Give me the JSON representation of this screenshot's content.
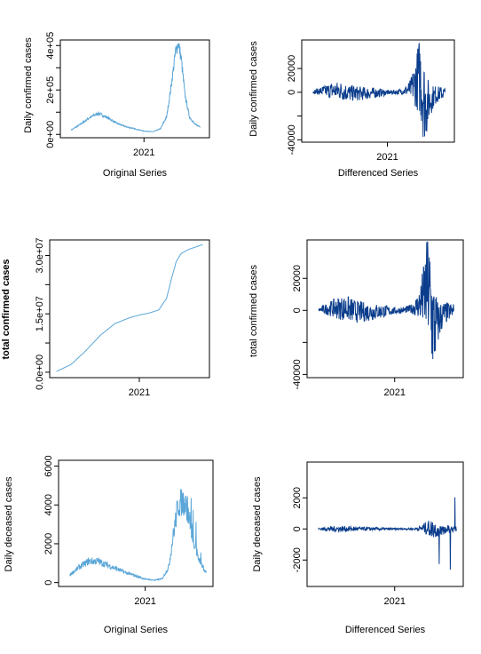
{
  "chart_data": [
    {
      "id": "p1",
      "type": "line",
      "color": "#5aa6d8",
      "ylabel": "Daily confirmed cases",
      "xlabel": "Original Series",
      "xticks": [
        {
          "x": 2021,
          "label": "2021"
        }
      ],
      "yticks": [
        {
          "v": 0,
          "label": "0e+00"
        },
        {
          "v": 200000,
          "label": "2e+05"
        },
        {
          "v": 400000,
          "label": "4e+05"
        }
      ],
      "minor_yticks": [
        100000,
        300000
      ],
      "xlim": [
        2020.08,
        2021.72
      ],
      "ylim": [
        -15000,
        425000
      ],
      "series": [
        {
          "x": [
            2020.2,
            2020.3,
            2020.4,
            2020.5,
            2020.6,
            2020.7,
            2020.8,
            2020.9,
            2021.0,
            2021.1,
            2021.18,
            2021.25,
            2021.3,
            2021.35,
            2021.38,
            2021.41,
            2021.45,
            2021.5,
            2021.56,
            2021.62
          ],
          "values": [
            20000,
            45000,
            75000,
            95000,
            75000,
            50000,
            35000,
            25000,
            15000,
            12000,
            25000,
            80000,
            220000,
            380000,
            410000,
            340000,
            180000,
            80000,
            45000,
            35000
          ]
        }
      ]
    },
    {
      "id": "p2",
      "type": "line",
      "color": "#0b3d8c",
      "ylabel": "Daily confirmed cases",
      "xlabel": "Differenced Series",
      "xticks": [
        {
          "x": 2021,
          "label": "2021"
        }
      ],
      "yticks": [
        {
          "v": -40000,
          "label": "-40000"
        },
        {
          "v": 0,
          "label": "0"
        },
        {
          "v": 20000,
          "label": "20000"
        }
      ],
      "minor_yticks": [
        -20000
      ],
      "xlim": [
        2020.08,
        2021.72
      ],
      "ylim": [
        -42000,
        44000
      ],
      "series": [
        {
          "x": [
            2020.2,
            2020.3,
            2020.4,
            2020.5,
            2020.6,
            2020.7,
            2020.8,
            2020.9,
            2021.0,
            2021.1,
            2021.18,
            2021.25,
            2021.3,
            2021.35,
            2021.38,
            2021.41,
            2021.45,
            2021.5,
            2021.56,
            2021.62
          ],
          "amplitude": [
            1000,
            4000,
            7000,
            8000,
            7000,
            6000,
            5000,
            4000,
            2000,
            2000,
            3000,
            8000,
            20000,
            35000,
            38000,
            32000,
            15000,
            9000,
            6000,
            5000
          ],
          "level": [
            300,
            1000,
            1500,
            1200,
            -800,
            -1000,
            -800,
            -500,
            -300,
            200,
            1000,
            3000,
            8000,
            15000,
            0,
            -10000,
            -8000,
            -3000,
            -1000,
            -500
          ]
        }
      ]
    },
    {
      "id": "p3",
      "type": "line",
      "color": "#5aa6d8",
      "ylabel": "total confirmed cases",
      "ylabel_bold": true,
      "xlabel": "",
      "xticks": [
        {
          "x": 2021,
          "label": "2021"
        }
      ],
      "yticks": [
        {
          "v": 0,
          "label": "0.0e+00"
        },
        {
          "v": 15000000,
          "label": "1.5e+07"
        },
        {
          "v": 30000000,
          "label": "3.0e+07"
        }
      ],
      "minor_yticks": [
        7500000,
        22500000
      ],
      "xlim": [
        2020.08,
        2021.72
      ],
      "ylim": [
        -1400000,
        34000000
      ],
      "series": [
        {
          "x": [
            2020.15,
            2020.3,
            2020.45,
            2020.6,
            2020.75,
            2020.9,
            2021.0,
            2021.1,
            2021.2,
            2021.28,
            2021.33,
            2021.38,
            2021.43,
            2021.5,
            2021.58,
            2021.65
          ],
          "values": [
            200000,
            2000000,
            5500000,
            9500000,
            12500000,
            14000000,
            14700000,
            15200000,
            16000000,
            19000000,
            24000000,
            28500000,
            30500000,
            31500000,
            32200000,
            32800000
          ]
        }
      ]
    },
    {
      "id": "p4",
      "type": "line",
      "color": "#0b3d8c",
      "ylabel": "total confirmed cases",
      "xlabel": "",
      "xticks": [
        {
          "x": 2021,
          "label": "2021"
        }
      ],
      "yticks": [
        {
          "v": -40000,
          "label": "-40000"
        },
        {
          "v": 0,
          "label": "0"
        },
        {
          "v": 20000,
          "label": "20000"
        }
      ],
      "minor_yticks": [
        -20000
      ],
      "xlim": [
        2020.08,
        2021.72
      ],
      "ylim": [
        -42000,
        44000
      ],
      "series": [
        {
          "x": [
            2020.2,
            2020.3,
            2020.4,
            2020.5,
            2020.6,
            2020.7,
            2020.8,
            2020.9,
            2021.0,
            2021.1,
            2021.18,
            2021.25,
            2021.3,
            2021.35,
            2021.38,
            2021.41,
            2021.45,
            2021.5,
            2021.56,
            2021.62
          ],
          "amplitude": [
            1000,
            4000,
            7000,
            8000,
            7000,
            6000,
            5000,
            4000,
            2000,
            2000,
            3000,
            8000,
            20000,
            35000,
            38000,
            32000,
            15000,
            9000,
            6000,
            5000
          ],
          "level": [
            300,
            1000,
            1500,
            1200,
            -800,
            -1000,
            -800,
            -500,
            -300,
            200,
            1000,
            3000,
            8000,
            15000,
            0,
            -10000,
            -8000,
            -3000,
            -1000,
            -500
          ]
        }
      ]
    },
    {
      "id": "p5",
      "type": "line",
      "color": "#5aa6d8",
      "ylabel": "Daily deceased cases",
      "xlabel": "Original Series",
      "xticks": [
        {
          "x": 2021,
          "label": "2021"
        }
      ],
      "yticks": [
        {
          "v": 0,
          "label": "0"
        },
        {
          "v": 2000,
          "label": "2000"
        },
        {
          "v": 4000,
          "label": "4000"
        },
        {
          "v": 6000,
          "label": "6000"
        }
      ],
      "minor_yticks": [],
      "xlim": [
        2020.08,
        2021.72
      ],
      "ylim": [
        -200,
        6300
      ],
      "series": [
        {
          "x": [
            2020.2,
            2020.3,
            2020.4,
            2020.5,
            2020.6,
            2020.7,
            2020.8,
            2020.9,
            2021.0,
            2021.1,
            2021.18,
            2021.25,
            2021.3,
            2021.35,
            2021.4,
            2021.45,
            2021.5,
            2021.55,
            2021.6,
            2021.65
          ],
          "values": [
            400,
            800,
            1100,
            1100,
            900,
            700,
            500,
            350,
            180,
            120,
            200,
            800,
            2500,
            4000,
            4200,
            3800,
            2500,
            1500,
            900,
            500
          ]
        }
      ]
    },
    {
      "id": "p6",
      "type": "line",
      "color": "#0b3d8c",
      "ylabel": "Daily deceased cases",
      "xlabel": "Differenced Series",
      "xticks": [
        {
          "x": 2021,
          "label": "2021"
        }
      ],
      "yticks": [
        {
          "v": -2000,
          "label": "-2000"
        },
        {
          "v": 0,
          "label": "0"
        },
        {
          "v": 2000,
          "label": "2000"
        }
      ],
      "minor_yticks": [],
      "xlim": [
        2020.08,
        2021.72
      ],
      "ylim": [
        -3700,
        4300
      ],
      "series": [
        {
          "x": [
            2020.2,
            2020.3,
            2020.4,
            2020.5,
            2020.6,
            2020.7,
            2020.8,
            2020.9,
            2021.0,
            2021.1,
            2021.18,
            2021.25,
            2021.3,
            2021.35,
            2021.4,
            2021.45,
            2021.5,
            2021.55,
            2021.6,
            2021.65
          ],
          "amplitude": [
            60,
            150,
            200,
            180,
            150,
            120,
            100,
            80,
            50,
            50,
            60,
            120,
            300,
            500,
            600,
            500,
            400,
            300,
            200,
            150
          ],
          "level": [
            0,
            0,
            0,
            0,
            0,
            0,
            0,
            0,
            0,
            0,
            0,
            20,
            50,
            60,
            0,
            -40,
            -40,
            -20,
            0,
            0
          ]
        }
      ]
    }
  ]
}
